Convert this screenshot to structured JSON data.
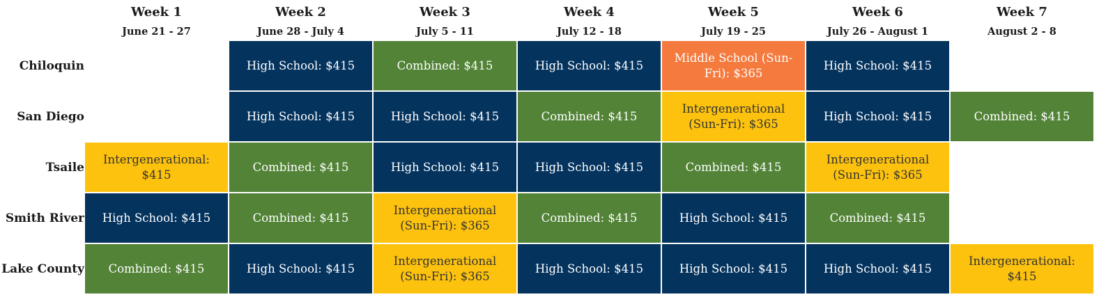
{
  "weeks": [
    {
      "label": "Week 1",
      "dates": "June 21 - 27"
    },
    {
      "label": "Week 2",
      "dates": "June 28 - July 4"
    },
    {
      "label": "Week 3",
      "dates": "July 5 - 11"
    },
    {
      "label": "Week 4",
      "dates": "July 12 - 18"
    },
    {
      "label": "Week 5",
      "dates": "July 19 - 25"
    },
    {
      "label": "Week 6",
      "dates": "July 26 - August 1"
    },
    {
      "label": "Week 7",
      "dates": "August 2 - 8"
    }
  ],
  "colors": {
    "High School": "#04335e",
    "Combined": "#528337",
    "Intergenerational": "#fdc20e",
    "Middle School": "#f47a3e"
  },
  "rows": [
    {
      "location": "Chiloquin",
      "cells": [
        null,
        {
          "type": "High School",
          "text": "High School: $415"
        },
        {
          "type": "Combined",
          "text": "Combined: $415"
        },
        {
          "type": "High School",
          "text": "High School: $415"
        },
        {
          "type": "Middle School",
          "text": "Middle School (Sun-Fri): $365"
        },
        {
          "type": "High School",
          "text": "High School: $415"
        },
        null
      ]
    },
    {
      "location": "San Diego",
      "cells": [
        null,
        {
          "type": "High School",
          "text": "High School: $415"
        },
        {
          "type": "High School",
          "text": "High School: $415"
        },
        {
          "type": "Combined",
          "text": "Combined: $415"
        },
        {
          "type": "Intergenerational",
          "text": "Intergenerational (Sun-Fri): $365"
        },
        {
          "type": "High School",
          "text": "High School: $415"
        },
        {
          "type": "Combined",
          "text": "Combined: $415"
        }
      ]
    },
    {
      "location": "Tsaile",
      "cells": [
        {
          "type": "Intergenerational",
          "text": "Intergenerational: $415"
        },
        {
          "type": "Combined",
          "text": "Combined: $415"
        },
        {
          "type": "High School",
          "text": "High School: $415"
        },
        {
          "type": "High School",
          "text": "High School: $415"
        },
        {
          "type": "Combined",
          "text": "Combined: $415"
        },
        {
          "type": "Intergenerational",
          "text": "Intergenerational (Sun-Fri): $365"
        },
        null
      ]
    },
    {
      "location": "Smith River",
      "cells": [
        {
          "type": "High School",
          "text": "High School: $415"
        },
        {
          "type": "Combined",
          "text": "Combined: $415"
        },
        {
          "type": "Intergenerational",
          "text": "Intergenerational (Sun-Fri): $365"
        },
        {
          "type": "Combined",
          "text": "Combined: $415"
        },
        {
          "type": "High School",
          "text": "High School: $415"
        },
        {
          "type": "Combined",
          "text": "Combined: $415"
        },
        null
      ]
    },
    {
      "location": "Lake County",
      "cells": [
        {
          "type": "Combined",
          "text": "Combined: $415"
        },
        {
          "type": "High School",
          "text": "High School: $415"
        },
        {
          "type": "Intergenerational",
          "text": "Intergenerational (Sun-Fri): $365"
        },
        {
          "type": "High School",
          "text": "High School: $415"
        },
        {
          "type": "High School",
          "text": "High School: $415"
        },
        {
          "type": "High School",
          "text": "High School: $415"
        },
        {
          "type": "Intergenerational",
          "text": "Intergenerational: $415"
        }
      ]
    }
  ]
}
